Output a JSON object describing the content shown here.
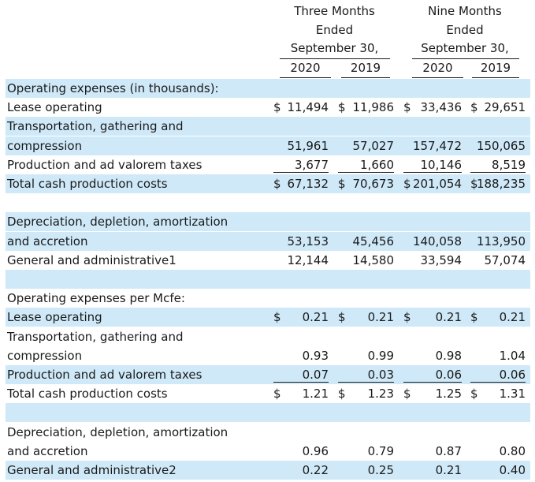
{
  "header": {
    "three_months": [
      "Three Months",
      "Ended",
      "September 30,"
    ],
    "nine_months": [
      "Nine Months",
      "Ended",
      "September 30,"
    ],
    "years": [
      "2020",
      "2019",
      "2020",
      "2019"
    ]
  },
  "rows": [
    {
      "label": "Operating expenses (in thousands):"
    },
    {
      "label": "Lease operating",
      "cur": [
        "$",
        "$",
        "$",
        "$"
      ],
      "v": [
        "11,494",
        "11,986",
        "33,436",
        "29,651"
      ]
    },
    {
      "label": "Transportation, gathering and"
    },
    {
      "label": "compression",
      "v": [
        "51,961",
        "57,027",
        "157,472",
        "150,065"
      ]
    },
    {
      "label": "Production and ad valorem taxes",
      "v": [
        "3,677",
        "1,660",
        "10,146",
        "8,519"
      ]
    },
    {
      "label": "Total cash production costs",
      "cur": [
        "$",
        "$",
        "$",
        "$"
      ],
      "v": [
        "67,132",
        "70,673",
        "201,054",
        "188,235"
      ]
    },
    {
      "label": ""
    },
    {
      "label": "Depreciation, depletion, amortization"
    },
    {
      "label": "and accretion",
      "v": [
        "53,153",
        "45,456",
        "140,058",
        "113,950"
      ]
    },
    {
      "label": "General and administrative1",
      "v": [
        "12,144",
        "14,580",
        "33,594",
        "57,074"
      ]
    },
    {
      "label": ""
    },
    {
      "label": "Operating expenses per Mcfe:"
    },
    {
      "label": "Lease operating",
      "cur": [
        "$",
        "$",
        "$",
        "$"
      ],
      "v": [
        "0.21",
        "0.21",
        "0.21",
        "0.21"
      ]
    },
    {
      "label": "Transportation, gathering and"
    },
    {
      "label": "compression",
      "v": [
        "0.93",
        "0.99",
        "0.98",
        "1.04"
      ]
    },
    {
      "label": "Production and ad valorem taxes",
      "v": [
        "0.07",
        "0.03",
        "0.06",
        "0.06"
      ]
    },
    {
      "label": "Total cash production costs",
      "cur": [
        "$",
        "$",
        "$",
        "$"
      ],
      "v": [
        "1.21",
        "1.23",
        "1.25",
        "1.31"
      ]
    },
    {
      "label": ""
    },
    {
      "label": "Depreciation, depletion, amortization"
    },
    {
      "label": "and accretion",
      "v": [
        "0.96",
        "0.79",
        "0.87",
        "0.80"
      ]
    },
    {
      "label": "General and administrative2",
      "v": [
        "0.22",
        "0.25",
        "0.21",
        "0.40"
      ]
    }
  ]
}
